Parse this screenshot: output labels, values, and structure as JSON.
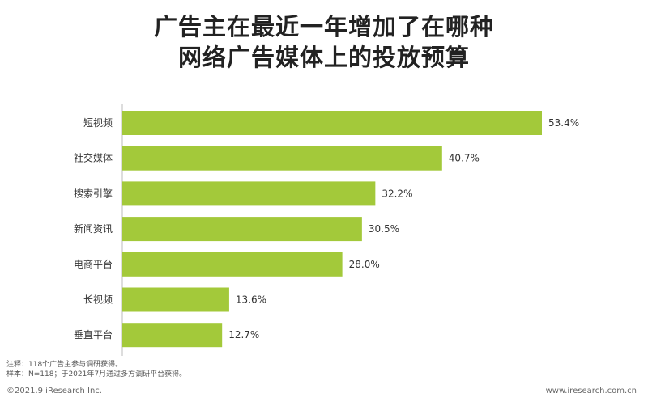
{
  "title_line1": "广告主在最近一年增加了在哪种",
  "title_line2": "网络广告媒体上的投放预算",
  "chart_data": {
    "type": "bar",
    "orientation": "horizontal",
    "categories": [
      "短视频",
      "社交媒体",
      "搜索引擎",
      "新闻资讯",
      "电商平台",
      "长视频",
      "垂直平台"
    ],
    "values": [
      53.4,
      40.7,
      32.2,
      30.5,
      28.0,
      13.6,
      12.7
    ],
    "value_labels": [
      "53.4%",
      "40.7%",
      "32.2%",
      "30.5%",
      "28.0%",
      "13.6%",
      "12.7%"
    ],
    "unit": "%",
    "xlim": [
      0,
      53.4
    ],
    "grid": false,
    "legend": "none",
    "bar_color": "#a3c93a"
  },
  "footnote_line1": "注释：118个广告主参与调研获得。",
  "footnote_line2": "样本：N=118；于2021年7月通过多方调研平台获得。",
  "copyright": "©2021.9 iResearch Inc.",
  "website": "www.iresearch.com.cn"
}
